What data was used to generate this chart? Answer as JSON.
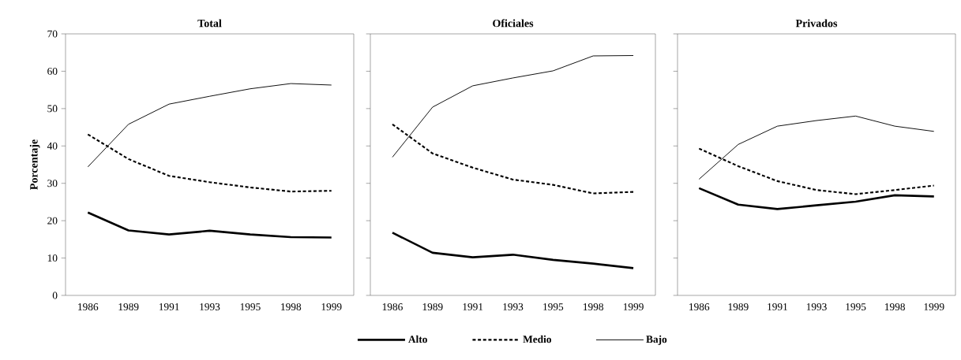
{
  "chart_data": [
    {
      "type": "line",
      "title": "Total",
      "ylabel": "Porcentaje",
      "categories": [
        "1986",
        "1989",
        "1991",
        "1993",
        "1995",
        "1998",
        "1999"
      ],
      "ylim": [
        0,
        70
      ],
      "yticks": [
        0,
        10,
        20,
        30,
        40,
        50,
        60,
        70
      ],
      "series": [
        {
          "color": "#000000",
          "line_style": "solid",
          "values": [
            22.2,
            17.4,
            16.3,
            17.3,
            16.3,
            15.6,
            15.5
          ]
        },
        {
          "color": "#000000",
          "line_style": "dashed",
          "values": [
            43.1,
            36.5,
            32.0,
            30.3,
            28.9,
            27.8,
            28.0
          ]
        },
        {
          "color": "#000000",
          "line_style": "solid",
          "values": [
            34.4,
            45.8,
            51.2,
            53.3,
            55.3,
            56.7,
            56.3
          ]
        }
      ]
    },
    {
      "type": "line",
      "title": "Oficiales",
      "categories": [
        "1986",
        "1989",
        "1991",
        "1993",
        "1995",
        "1998",
        "1999"
      ],
      "ylim": [
        0,
        70
      ],
      "yticks": [
        0,
        10,
        20,
        30,
        40,
        50,
        60,
        70
      ],
      "tick_labels": "x",
      "legend": "bottom",
      "series": [
        {
          "name": "Alto",
          "color": "#000000",
          "line_style": "solid",
          "values": [
            16.8,
            11.4,
            10.2,
            10.9,
            9.5,
            8.5,
            7.3
          ]
        },
        {
          "name": "Medio",
          "color": "#000000",
          "line_style": "dashed",
          "values": [
            45.8,
            38.0,
            34.2,
            31.0,
            29.6,
            27.3,
            27.7
          ]
        },
        {
          "name": "Bajo",
          "color": "#000000",
          "line_style": "solid",
          "values": [
            37.0,
            50.4,
            56.1,
            58.2,
            60.1,
            64.1,
            64.2
          ]
        }
      ]
    },
    {
      "type": "line",
      "title": "Privados",
      "categories": [
        "1986",
        "1989",
        "1991",
        "1993",
        "1995",
        "1998",
        "1999"
      ],
      "ylim": [
        0,
        70
      ],
      "yticks": [
        0,
        10,
        20,
        30,
        40,
        50,
        60,
        70
      ],
      "tick_labels": "x",
      "series": [
        {
          "color": "#000000",
          "line_style": "solid",
          "values": [
            28.7,
            24.3,
            23.1,
            24.1,
            25.1,
            26.8,
            26.5
          ]
        },
        {
          "color": "#000000",
          "line_style": "dashed",
          "values": [
            39.3,
            34.6,
            30.6,
            28.2,
            27.1,
            28.2,
            29.4
          ]
        },
        {
          "color": "#000000",
          "line_style": "solid",
          "values": [
            31.1,
            40.4,
            45.3,
            46.8,
            48.0,
            45.3,
            43.9
          ]
        }
      ]
    }
  ]
}
